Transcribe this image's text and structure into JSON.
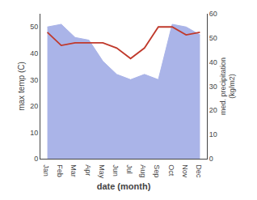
{
  "chart_data": {
    "type": "line",
    "categories": [
      "Jan",
      "Feb",
      "Mar",
      "Apr",
      "May",
      "Jun",
      "Jul",
      "Aug",
      "Sep",
      "Oct",
      "Nov",
      "Dec"
    ],
    "series": [
      {
        "type": "area",
        "color": "#aab4e8",
        "values": [
          50,
          51,
          46,
          45,
          37,
          32,
          30,
          32,
          30,
          51,
          50,
          47
        ]
      },
      {
        "type": "line",
        "color": "#c0392b",
        "values": [
          48,
          43,
          44,
          44,
          44,
          42,
          38,
          42,
          50,
          50,
          47,
          48
        ]
      }
    ],
    "xlabel": "date (month)",
    "ylabel": "max temp (C)",
    "y2label": "med. precipitation\n(kg/m2)",
    "ylim": [
      0,
      55
    ],
    "yticks": [
      0,
      10,
      20,
      30,
      40,
      50
    ],
    "y2lim": [
      0,
      60
    ],
    "y2ticks": [
      0,
      10,
      20,
      30,
      40,
      50,
      60
    ],
    "grid": false,
    "legend": false
  }
}
